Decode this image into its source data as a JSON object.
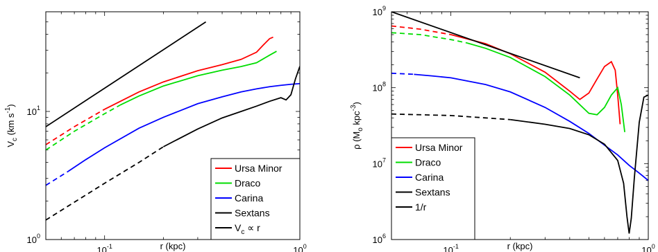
{
  "colors": {
    "ursa_minor": "#ff0000",
    "draco": "#00dd00",
    "carina": "#0000ff",
    "sextans": "#000000"
  },
  "chart_data": [
    {
      "type": "line",
      "scale": "log-log",
      "xlabel": "r (kpc)",
      "ylabel": "V_c (km s^-1)",
      "ylabel_parts": {
        "main": "V",
        "sub": "c",
        "unit_open": " (km s",
        "sup": "-1",
        "unit_close": ")"
      },
      "xlim": [
        0.05,
        1.0
      ],
      "ylim": [
        1,
        60
      ],
      "xticks": [
        {
          "value": 0.1,
          "base": "10",
          "exp": "-1"
        },
        {
          "value": 1,
          "base": "10",
          "exp": "0"
        }
      ],
      "yticks": [
        {
          "value": 1,
          "base": "10",
          "exp": "0"
        },
        {
          "value": 10,
          "base": "10",
          "exp": "1"
        }
      ],
      "legend": {
        "placement": "bottom-right",
        "entries": [
          {
            "label": "Ursa Minor",
            "color": "#ff0000"
          },
          {
            "label": "Draco",
            "color": "#00dd00"
          },
          {
            "label": "Carina",
            "color": "#0000ff"
          },
          {
            "label": "Sextans",
            "color": "#000000"
          },
          {
            "label": "V_c ∝ r",
            "color": "#000000",
            "label_parts": {
              "main": "V",
              "sub": "c",
              "rest": " ∝ r"
            }
          }
        ]
      },
      "series": [
        {
          "name": "Ursa Minor",
          "color": "#ff0000",
          "dashed_until": 0.1,
          "x": [
            0.05,
            0.07,
            0.1,
            0.15,
            0.2,
            0.3,
            0.4,
            0.5,
            0.6,
            0.65,
            0.7,
            0.73
          ],
          "y": [
            5.5,
            7.6,
            10.4,
            14.2,
            17.0,
            20.8,
            23.2,
            25.5,
            29.0,
            33.0,
            37.0,
            38.0
          ]
        },
        {
          "name": "Draco",
          "color": "#00dd00",
          "dashed_until": 0.12,
          "x": [
            0.05,
            0.07,
            0.1,
            0.12,
            0.15,
            0.2,
            0.3,
            0.4,
            0.5,
            0.6,
            0.7,
            0.76
          ],
          "y": [
            5.0,
            7.0,
            9.6,
            11.2,
            13.2,
            15.8,
            19.0,
            21.0,
            22.4,
            24.0,
            27.5,
            29.5
          ]
        },
        {
          "name": "Carina",
          "color": "#0000ff",
          "dashed_until": 0.065,
          "x": [
            0.05,
            0.065,
            0.08,
            0.1,
            0.15,
            0.2,
            0.3,
            0.4,
            0.5,
            0.6,
            0.7,
            0.8,
            0.9,
            1.0
          ],
          "y": [
            2.65,
            3.4,
            4.2,
            5.2,
            7.4,
            9.0,
            11.5,
            13.0,
            14.2,
            15.0,
            15.6,
            16.0,
            16.3,
            16.5
          ]
        },
        {
          "name": "Sextans",
          "color": "#000000",
          "dashed_until": 0.2,
          "x": [
            0.05,
            0.1,
            0.15,
            0.2,
            0.3,
            0.4,
            0.5,
            0.6,
            0.7,
            0.8,
            0.85,
            0.9,
            0.95,
            1.0
          ],
          "y": [
            1.42,
            2.75,
            4.0,
            5.3,
            7.3,
            8.9,
            10.0,
            11.0,
            12.0,
            12.8,
            12.3,
            13.5,
            18.0,
            22.5
          ]
        },
        {
          "name": "V_c ∝ r",
          "color": "#000000",
          "x": [
            0.05,
            0.33
          ],
          "y": [
            7.6,
            50.0
          ]
        }
      ]
    },
    {
      "type": "line",
      "scale": "log-log",
      "xlabel": "r (kpc)",
      "ylabel": "ρ (M_o kpc^-3)",
      "ylabel_parts": {
        "main": "ρ (M",
        "sub": "o",
        "unit_open": " kpc",
        "sup": "-3",
        "unit_close": ")"
      },
      "xlim": [
        0.05,
        1.0
      ],
      "ylim": [
        1000000,
        1000000000
      ],
      "xticks": [
        {
          "value": 0.1,
          "base": "10",
          "exp": "-1"
        },
        {
          "value": 1,
          "base": "10",
          "exp": "0"
        }
      ],
      "yticks": [
        {
          "value": 1000000,
          "base": "10",
          "exp": "6"
        },
        {
          "value": 10000000,
          "base": "10",
          "exp": "7"
        },
        {
          "value": 100000000,
          "base": "10",
          "exp": "8"
        },
        {
          "value": 1000000000,
          "base": "10",
          "exp": "9"
        }
      ],
      "legend": {
        "placement": "bottom-left",
        "entries": [
          {
            "label": "Ursa Minor",
            "color": "#ff0000"
          },
          {
            "label": "Draco",
            "color": "#00dd00"
          },
          {
            "label": "Carina",
            "color": "#0000ff"
          },
          {
            "label": "Sextans",
            "color": "#000000"
          },
          {
            "label": "1/r",
            "color": "#000000"
          }
        ]
      },
      "series": [
        {
          "name": "Ursa Minor",
          "color": "#ff0000",
          "dashed_until": 0.1,
          "x": [
            0.05,
            0.07,
            0.1,
            0.15,
            0.2,
            0.3,
            0.4,
            0.45,
            0.5,
            0.55,
            0.6,
            0.65,
            0.68,
            0.7,
            0.72
          ],
          "y": [
            650000000.0,
            590000000.0,
            500000000.0,
            380000000.0,
            280000000.0,
            160000000.0,
            90000000.0,
            70000000.0,
            85000000.0,
            130000000.0,
            190000000.0,
            220000000.0,
            170000000.0,
            80000000.0,
            33000000.0
          ]
        },
        {
          "name": "Draco",
          "color": "#00dd00",
          "dashed_until": 0.12,
          "x": [
            0.05,
            0.07,
            0.1,
            0.12,
            0.15,
            0.2,
            0.3,
            0.4,
            0.5,
            0.55,
            0.6,
            0.65,
            0.7,
            0.73,
            0.76
          ],
          "y": [
            530000000.0,
            500000000.0,
            430000000.0,
            390000000.0,
            330000000.0,
            250000000.0,
            140000000.0,
            80000000.0,
            46000000.0,
            44000000.0,
            55000000.0,
            80000000.0,
            100000000.0,
            60000000.0,
            26000000.0
          ]
        },
        {
          "name": "Carina",
          "color": "#0000ff",
          "dashed_until": 0.065,
          "x": [
            0.05,
            0.065,
            0.08,
            0.1,
            0.15,
            0.2,
            0.3,
            0.4,
            0.5,
            0.6,
            0.7,
            0.8,
            0.9,
            1.0
          ],
          "y": [
            155000000.0,
            150000000.0,
            143000000.0,
            135000000.0,
            110000000.0,
            88000000.0,
            55000000.0,
            36000000.0,
            25000000.0,
            17500000.0,
            13000000.0,
            9500000.0,
            7500000.0,
            6000000.0
          ]
        },
        {
          "name": "Sextans",
          "color": "#000000",
          "dashed_until": 0.2,
          "x": [
            0.05,
            0.1,
            0.15,
            0.2,
            0.3,
            0.4,
            0.5,
            0.6,
            0.7,
            0.75,
            0.78,
            0.8,
            0.82,
            0.85,
            0.9,
            0.95,
            1.0
          ],
          "y": [
            45000000.0,
            43000000.0,
            40000000.0,
            38000000.0,
            33000000.0,
            29000000.0,
            24000000.0,
            18000000.0,
            11000000.0,
            5500000.0,
            2000000.0,
            1200000.0,
            1900000.0,
            6500000.0,
            35000000.0,
            75000000.0,
            80000000.0
          ]
        },
        {
          "name": "1/r",
          "color": "#000000",
          "x": [
            0.05,
            0.45
          ],
          "y": [
            1000000000.0,
            135000000.0
          ]
        }
      ]
    }
  ]
}
